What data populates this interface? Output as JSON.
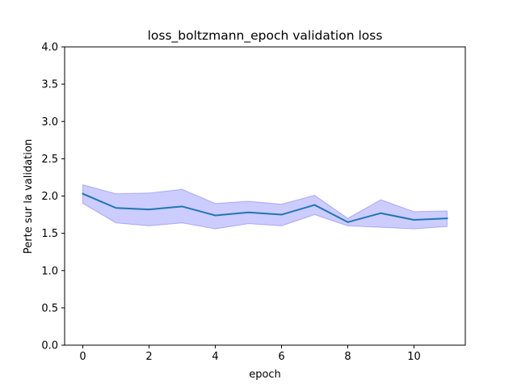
{
  "chart_data": {
    "type": "line",
    "title": "loss_boltzmann_epoch validation loss",
    "xlabel": "epoch",
    "ylabel": "Perte sur la validation",
    "xlim": [
      -0.55,
      11.55
    ],
    "ylim": [
      0.0,
      4.0
    ],
    "xticks": [
      0,
      2,
      4,
      6,
      8,
      10
    ],
    "yticks": [
      0.0,
      0.5,
      1.0,
      1.5,
      2.0,
      2.5,
      3.0,
      3.5,
      4.0
    ],
    "xtick_labels": [
      "0",
      "2",
      "4",
      "6",
      "8",
      "10"
    ],
    "ytick_labels": [
      "0.0",
      "0.5",
      "1.0",
      "1.5",
      "2.0",
      "2.5",
      "3.0",
      "3.5",
      "4.0"
    ],
    "grid": false,
    "x": [
      0,
      1,
      2,
      3,
      4,
      5,
      6,
      7,
      8,
      9,
      10,
      11
    ],
    "series": [
      {
        "values": [
          2.03,
          1.84,
          1.82,
          1.86,
          1.74,
          1.78,
          1.75,
          1.88,
          1.65,
          1.77,
          1.68,
          1.7
        ],
        "lower": [
          1.9,
          1.64,
          1.6,
          1.64,
          1.56,
          1.63,
          1.6,
          1.75,
          1.6,
          1.58,
          1.56,
          1.59
        ],
        "upper": [
          2.15,
          2.03,
          2.04,
          2.09,
          1.9,
          1.93,
          1.89,
          2.01,
          1.7,
          1.95,
          1.79,
          1.8
        ],
        "color": "#1f77b4",
        "band_color": "#0000ff"
      }
    ]
  }
}
